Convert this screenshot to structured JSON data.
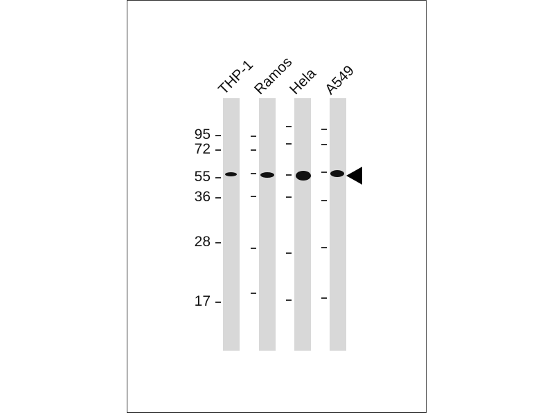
{
  "lanes": [
    "THP-1",
    "Ramos",
    "Hela",
    "A549"
  ],
  "mw_markers": [
    "95",
    "72",
    "55",
    "36",
    "28",
    "17"
  ],
  "band_indicator": "arrowhead"
}
